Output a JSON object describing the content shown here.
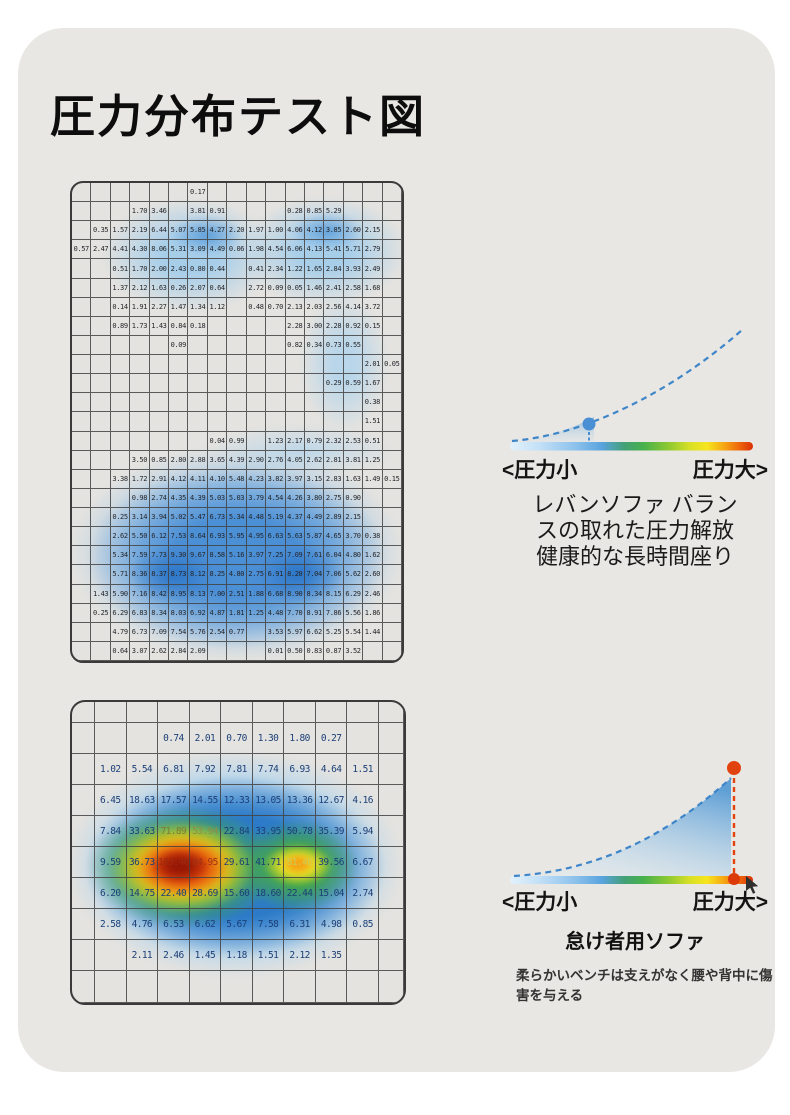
{
  "page": {
    "title": "圧力分布テスト図"
  },
  "chart_data": [
    {
      "type": "heatmap",
      "name": "balanced-sofa-pressure-map",
      "rows": 25,
      "cols": 17,
      "values": [
        [
          "",
          "",
          "",
          "",
          "",
          "",
          "0.17",
          "",
          "",
          "",
          "",
          "",
          "",
          "",
          "",
          "",
          ""
        ],
        [
          "",
          "",
          "",
          "1.70",
          "3.46",
          "",
          "3.81",
          "0.91",
          "",
          "",
          "",
          "0.28",
          "0.85",
          "5.29",
          "",
          "",
          ""
        ],
        [
          "",
          "0.35",
          "1.57",
          "2.19",
          "6.44",
          "5.07",
          "5.85",
          "4.27",
          "2.20",
          "1.97",
          "1.00",
          "4.06",
          "4.12",
          "3.85",
          "2.60",
          "2.15",
          ""
        ],
        [
          "0.57",
          "2.47",
          "4.41",
          "4.30",
          "8.06",
          "5.31",
          "3.09",
          "4.49",
          "0.06",
          "1.98",
          "4.54",
          "6.06",
          "4.13",
          "5.41",
          "5.71",
          "2.79",
          ""
        ],
        [
          "",
          "",
          "0.51",
          "1.70",
          "2.00",
          "2.43",
          "0.80",
          "0.44",
          "",
          "0.41",
          "2.34",
          "1.22",
          "1.65",
          "2.84",
          "3.93",
          "2.49",
          ""
        ],
        [
          "",
          "",
          "1.37",
          "2.12",
          "1.63",
          "0.26",
          "2.07",
          "0.64",
          "",
          "2.72",
          "0.09",
          "0.05",
          "1.46",
          "2.41",
          "2.58",
          "1.68",
          ""
        ],
        [
          "",
          "",
          "0.14",
          "1.91",
          "2.27",
          "1.47",
          "1.34",
          "1.12",
          "",
          "0.48",
          "0.70",
          "2.13",
          "2.03",
          "2.56",
          "4.14",
          "3.72",
          ""
        ],
        [
          "",
          "",
          "0.89",
          "1.73",
          "1.43",
          "0.84",
          "0.18",
          "",
          "",
          "",
          "",
          "2.28",
          "3.00",
          "2.28",
          "0.92",
          "0.15",
          ""
        ],
        [
          "",
          "",
          "",
          "",
          "",
          "0.09",
          "",
          "",
          "",
          "",
          "",
          "0.82",
          "0.34",
          "0.73",
          "0.55",
          "",
          ""
        ],
        [
          "",
          "",
          "",
          "",
          "",
          "",
          "",
          "",
          "",
          "",
          "",
          "",
          "",
          "",
          "",
          "2.01",
          "0.05"
        ],
        [
          "",
          "",
          "",
          "",
          "",
          "",
          "",
          "",
          "",
          "",
          "",
          "",
          "",
          "0.29",
          "0.59",
          "1.67",
          ""
        ],
        [
          "",
          "",
          "",
          "",
          "",
          "",
          "",
          "",
          "",
          "",
          "",
          "",
          "",
          "",
          "",
          "0.38",
          ""
        ],
        [
          "",
          "",
          "",
          "",
          "",
          "",
          "",
          "",
          "",
          "",
          "",
          "",
          "",
          "",
          "",
          "1.51",
          ""
        ],
        [
          "",
          "",
          "",
          "",
          "",
          "",
          "",
          "0.04",
          "0.99",
          "",
          "1.23",
          "2.17",
          "0.79",
          "2.32",
          "2.53",
          "0.51",
          ""
        ],
        [
          "",
          "",
          "",
          "3.50",
          "0.85",
          "2.80",
          "2.88",
          "3.65",
          "4.39",
          "2.90",
          "2.76",
          "4.05",
          "2.62",
          "2.81",
          "3.81",
          "1.25",
          ""
        ],
        [
          "",
          "",
          "3.38",
          "1.72",
          "2.91",
          "4.12",
          "4.11",
          "4.10",
          "5.48",
          "4.23",
          "3.82",
          "3.97",
          "3.15",
          "2.83",
          "1.63",
          "1.49",
          "0.15"
        ],
        [
          "",
          "",
          "",
          "0.98",
          "2.74",
          "4.35",
          "4.39",
          "5.03",
          "5.03",
          "3.79",
          "4.54",
          "4.26",
          "3.80",
          "2.75",
          "0.90",
          "",
          ""
        ],
        [
          "",
          "",
          "0.25",
          "3.14",
          "3.94",
          "5.02",
          "5.47",
          "6.73",
          "5.34",
          "4.48",
          "5.19",
          "4.37",
          "4.49",
          "2.89",
          "2.15",
          "",
          ""
        ],
        [
          "",
          "",
          "2.62",
          "5.50",
          "6.12",
          "7.53",
          "8.64",
          "6.93",
          "5.95",
          "4.95",
          "6.63",
          "5.63",
          "5.87",
          "4.65",
          "3.70",
          "0.38",
          ""
        ],
        [
          "",
          "",
          "5.34",
          "7.59",
          "7.73",
          "9.30",
          "9.67",
          "8.58",
          "5.16",
          "3.97",
          "7.25",
          "7.09",
          "7.61",
          "6.04",
          "4.80",
          "1.62",
          ""
        ],
        [
          "",
          "",
          "5.71",
          "8.36",
          "8.37",
          "8.73",
          "8.12",
          "8.25",
          "4.80",
          "2.75",
          "6.91",
          "8.20",
          "7.04",
          "7.06",
          "5.62",
          "2.60",
          ""
        ],
        [
          "",
          "1.43",
          "5.90",
          "7.16",
          "8.42",
          "8.95",
          "8.13",
          "7.00",
          "2.51",
          "1.88",
          "6.68",
          "8.90",
          "8.34",
          "8.15",
          "6.29",
          "2.46",
          ""
        ],
        [
          "",
          "0.25",
          "6.29",
          "6.83",
          "8.34",
          "8.03",
          "6.92",
          "4.87",
          "1.81",
          "1.25",
          "4.48",
          "7.70",
          "8.91",
          "7.86",
          "5.56",
          "1.86",
          ""
        ],
        [
          "",
          "",
          "4.79",
          "6.73",
          "7.09",
          "7.54",
          "5.76",
          "2.54",
          "0.77",
          "",
          "3.53",
          "5.97",
          "6.62",
          "5.25",
          "5.54",
          "1.44",
          ""
        ],
        [
          "",
          "",
          "0.64",
          "3.07",
          "2.62",
          "2.84",
          "2.09",
          "",
          "",
          "",
          "0.01",
          "0.50",
          "0.83",
          "0.87",
          "3.52",
          "",
          ""
        ]
      ]
    },
    {
      "type": "heatmap",
      "name": "lazy-sofa-pressure-map",
      "rows": 10,
      "cols": 11,
      "values": [
        [
          "",
          "",
          "",
          "",
          "",
          "",
          "",
          "",
          "",
          "",
          ""
        ],
        [
          "",
          "",
          "",
          "0.74",
          "2.01",
          "0.70",
          "1.30",
          "1.80",
          "0.27",
          "",
          ""
        ],
        [
          "",
          "1.02",
          "5.54",
          "6.81",
          "7.92",
          "7.81",
          "7.74",
          "6.93",
          "4.64",
          "1.51",
          ""
        ],
        [
          "",
          "6.45",
          "18.63",
          "17.57",
          "14.55",
          "12.33",
          "13.05",
          "13.36",
          "12.67",
          "4.16",
          ""
        ],
        [
          "",
          "7.84",
          "33.63",
          "71.89",
          "53.94",
          "22.84",
          "33.95",
          "50.78",
          "35.39",
          "5.94",
          ""
        ],
        [
          "",
          "9.59",
          "36.73",
          "103.46",
          "84.95",
          "29.61",
          "41.71",
          "81.46",
          "39.56",
          "6.67",
          ""
        ],
        [
          "",
          "6.20",
          "14.75",
          "22.40",
          "28.69",
          "15.60",
          "18.60",
          "22.44",
          "15.04",
          "2.74",
          ""
        ],
        [
          "",
          "2.58",
          "4.76",
          "6.53",
          "6.62",
          "5.67",
          "7.58",
          "6.31",
          "4.98",
          "0.85",
          ""
        ],
        [
          "",
          "",
          "2.11",
          "2.46",
          "1.45",
          "1.18",
          "1.51",
          "2.12",
          "1.35",
          "",
          ""
        ],
        [
          "",
          "",
          "",
          "",
          "",
          "",
          "",
          "",
          "",
          "",
          ""
        ]
      ],
      "text_color_overrides": [
        {
          "row": 4,
          "col": 3,
          "color": "#7c7c35"
        },
        {
          "row": 4,
          "col": 4,
          "color": "#8e8f45"
        },
        {
          "row": 5,
          "col": 3,
          "color": "#9c2a10"
        },
        {
          "row": 5,
          "col": 4,
          "color": "#a03415"
        },
        {
          "row": 5,
          "col": 7,
          "color": "#cdcd55"
        }
      ]
    }
  ],
  "legend_top": {
    "left_label": "<圧力小",
    "right_label": "圧力大>",
    "description_lines": [
      "レバンソファ バラン",
      "スの取れた圧力解放",
      "健康的な長時間座り"
    ]
  },
  "legend_bottom": {
    "left_label": "<圧力小",
    "right_label": "圧力大>",
    "title": "怠け者用ソファ",
    "description": "柔らかいベンチは支えがなく腰や背中に傷害を与える"
  },
  "colors": {
    "card_bg": "#e9e7e3",
    "curve_blue": "#3e86c9",
    "dot_blue": "#4a8fd3",
    "dot_red": "#e0430f",
    "heat_scale": [
      "#e3f2fc",
      "#8cc1ec",
      "#47b14c",
      "#f6e51e",
      "#f6a714",
      "#d93007"
    ]
  }
}
